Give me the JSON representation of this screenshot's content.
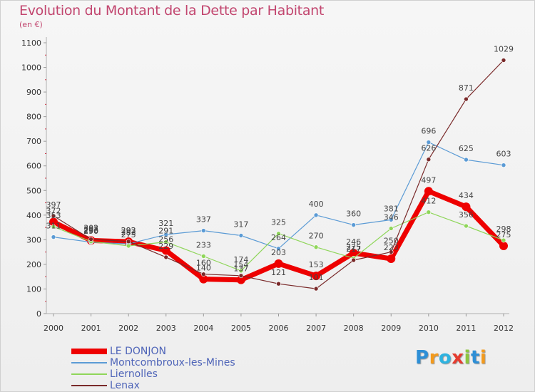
{
  "title": "Evolution du Montant de la Dette par Habitant",
  "subtitle": "(en €)",
  "logo": {
    "text": "Proxiti",
    "colors": [
      "#2e8fd6",
      "#f39a1c",
      "#2eb3e0",
      "#e63b2e",
      "#8dc63f",
      "#2e8fd6",
      "#f39a1c"
    ]
  },
  "chart_data": {
    "type": "line",
    "x": [
      "2000",
      "2001",
      "2002",
      "2003",
      "2004",
      "2005",
      "2006",
      "2007",
      "2008",
      "2009",
      "2010",
      "2011",
      "2012"
    ],
    "ylim": [
      0,
      1100
    ],
    "yticks": [
      0,
      100,
      200,
      300,
      400,
      500,
      600,
      700,
      800,
      900,
      1000,
      1100
    ],
    "grid": false,
    "legend_position": "bottom-left",
    "series": [
      {
        "name": "LE DONJON",
        "color": "#ee0000",
        "values": [
          372,
          297,
          292,
          256,
          140,
          137,
          203,
          153,
          246,
          223,
          497,
          434,
          275
        ]
      },
      {
        "name": "Montcombroux-les-Mines",
        "color": "#5b9bd5",
        "values": [
          311,
          290,
          283,
          321,
          337,
          317,
          264,
          400,
          360,
          381,
          696,
          625,
          603
        ]
      },
      {
        "name": "Liernolles",
        "color": "#8fd65a",
        "values": [
          353,
          293,
          275,
          291,
          233,
          174,
          325,
          270,
          225,
          346,
          412,
          356,
          298
        ]
      },
      {
        "name": "Lenax",
        "color": "#7a2a2a",
        "values": [
          397,
          302,
          293,
          229,
          160,
          154,
          121,
          101,
          217,
          250,
          626,
          871,
          1029
        ]
      }
    ]
  }
}
